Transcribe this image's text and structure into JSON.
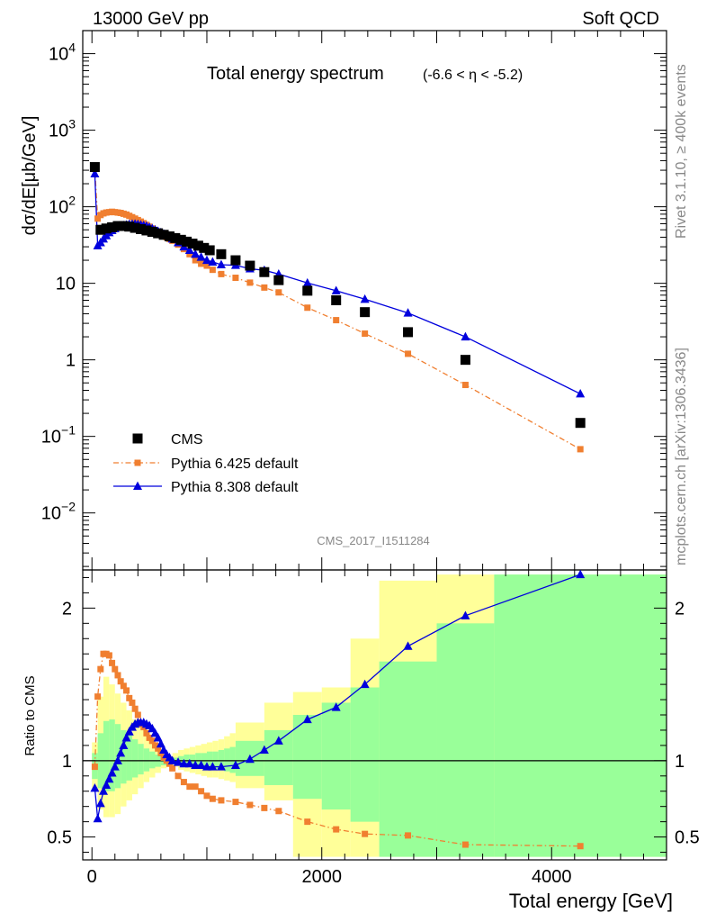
{
  "header": {
    "left": "13000 GeV pp",
    "right": "Soft QCD"
  },
  "side": {
    "rivet": "Rivet 3.1.10, ≥ 400k events",
    "mcplots": "mcplots.cern.ch [arXiv:1306.3436]"
  },
  "analysis_id": "CMS_2017_I1511284",
  "colors": {
    "cms": "#000000",
    "pythia6": "#f07f30",
    "pythia8": "#0000dd",
    "band_yellow": "#ffff99",
    "band_green": "#99ff99"
  },
  "chart_data": [
    {
      "type": "scatter",
      "title": "Total energy spectrum",
      "subtitle": "(-6.6 < η < -5.2)",
      "ylabel": "dσ/dE[μb/GeV]",
      "yscale": "log",
      "ylim": [
        0.0018,
        20000
      ],
      "xlim": [
        -80,
        5000
      ],
      "ytick_labels": [
        {
          "v": 10000,
          "base": "10",
          "exp": "4"
        },
        {
          "v": 1000,
          "base": "10",
          "exp": "3"
        },
        {
          "v": 100,
          "base": "10",
          "exp": "2"
        },
        {
          "v": 10,
          "base": "10",
          "exp": ""
        },
        {
          "v": 1,
          "base": "1",
          "exp": ""
        },
        {
          "v": 0.1,
          "base": "10",
          "exp": "−1"
        },
        {
          "v": 0.01,
          "base": "10",
          "exp": "−2"
        }
      ],
      "legend": {
        "position": "lower-left",
        "entries": [
          "CMS",
          "Pythia 6.425 default",
          "Pythia 8.308 default"
        ]
      },
      "series": [
        {
          "name": "CMS",
          "style": "square",
          "x": [
            25,
            75,
            125,
            175,
            225,
            275,
            325,
            375,
            425,
            475,
            525,
            575,
            625,
            675,
            725,
            775,
            825,
            875,
            925,
            975,
            1025,
            1125,
            1250,
            1375,
            1500,
            1625,
            1875,
            2125,
            2375,
            2750,
            3250,
            4250
          ],
          "y": [
            330,
            50,
            52,
            54,
            56,
            56,
            55,
            53,
            51,
            49,
            47,
            45,
            43,
            41,
            39,
            37,
            35,
            33,
            31,
            29,
            27,
            24,
            20,
            17,
            14,
            11,
            8.0,
            6.0,
            4.2,
            2.3,
            1.0,
            0.15
          ]
        },
        {
          "name": "Pythia 6.425 default",
          "style": "dashdot-square",
          "x": [
            25,
            50,
            75,
            100,
            125,
            150,
            175,
            200,
            225,
            250,
            275,
            300,
            325,
            350,
            375,
            400,
            425,
            450,
            475,
            500,
            525,
            550,
            575,
            600,
            625,
            650,
            675,
            700,
            750,
            800,
            850,
            900,
            950,
            1000,
            1050,
            1125,
            1250,
            1375,
            1500,
            1625,
            1875,
            2125,
            2375,
            2750,
            3250,
            4250
          ],
          "y": [
            315,
            70,
            78,
            82,
            84,
            85,
            86,
            85,
            84,
            83,
            81,
            79,
            76,
            73,
            70,
            67,
            64,
            61,
            58,
            55,
            52,
            49,
            46,
            44,
            42,
            40,
            38,
            36,
            32,
            28,
            24,
            20,
            18,
            17,
            15,
            13.2,
            11.8,
            10.2,
            8.8,
            7.6,
            4.8,
            3.3,
            2.2,
            1.2,
            0.47,
            0.068
          ]
        },
        {
          "name": "Pythia 8.308 default",
          "style": "solid-triangle",
          "x": [
            25,
            50,
            75,
            100,
            125,
            150,
            175,
            200,
            225,
            250,
            275,
            300,
            325,
            350,
            375,
            400,
            425,
            450,
            475,
            500,
            525,
            550,
            575,
            600,
            625,
            650,
            675,
            700,
            750,
            800,
            850,
            900,
            950,
            1000,
            1050,
            1125,
            1250,
            1375,
            1500,
            1625,
            1875,
            2125,
            2375,
            2750,
            3250,
            4250
          ],
          "y": [
            270,
            31,
            34,
            38,
            42,
            46,
            49,
            52,
            54,
            56,
            57,
            58,
            59,
            59.5,
            59.5,
            59,
            58,
            57,
            56,
            54,
            52,
            50,
            48,
            46,
            44,
            42,
            40,
            38,
            34,
            30,
            27,
            24,
            22,
            20,
            19,
            17.5,
            17.2,
            15.5,
            14.8,
            13.2,
            10.1,
            8.0,
            6.2,
            4.1,
            2.0,
            0.36
          ]
        }
      ]
    },
    {
      "type": "scatter",
      "ylabel": "Ratio to CMS",
      "xlabel": "Total energy [GeV]",
      "ylim": [
        0.35,
        2.25
      ],
      "xlim": [
        -80,
        5000
      ],
      "xtick_labels": [
        "0",
        "2000",
        "4000"
      ],
      "xticks": [
        0,
        2000,
        4000
      ],
      "ytick_labels": [
        "0.5",
        "1",
        "2"
      ],
      "yticks": [
        0.5,
        1,
        2
      ],
      "reference_line": 1,
      "bands": {
        "yellow": [
          {
            "x0": 0,
            "x1": 50,
            "lo": 0.82,
            "hi": 1.12
          },
          {
            "x0": 50,
            "x1": 100,
            "lo": 0.68,
            "hi": 1.42
          },
          {
            "x0": 100,
            "x1": 150,
            "lo": 0.63,
            "hi": 1.55
          },
          {
            "x0": 150,
            "x1": 200,
            "lo": 0.63,
            "hi": 1.5
          },
          {
            "x0": 200,
            "x1": 250,
            "lo": 0.65,
            "hi": 1.44
          },
          {
            "x0": 250,
            "x1": 300,
            "lo": 0.7,
            "hi": 1.38
          },
          {
            "x0": 300,
            "x1": 350,
            "lo": 0.74,
            "hi": 1.33
          },
          {
            "x0": 350,
            "x1": 400,
            "lo": 0.78,
            "hi": 1.27
          },
          {
            "x0": 400,
            "x1": 450,
            "lo": 0.82,
            "hi": 1.22
          },
          {
            "x0": 450,
            "x1": 500,
            "lo": 0.86,
            "hi": 1.17
          },
          {
            "x0": 500,
            "x1": 550,
            "lo": 0.89,
            "hi": 1.13
          },
          {
            "x0": 550,
            "x1": 600,
            "lo": 0.92,
            "hi": 1.09
          },
          {
            "x0": 600,
            "x1": 650,
            "lo": 0.95,
            "hi": 1.05
          },
          {
            "x0": 650,
            "x1": 700,
            "lo": 0.97,
            "hi": 1.03
          },
          {
            "x0": 700,
            "x1": 750,
            "lo": 0.96,
            "hi": 1.05
          },
          {
            "x0": 750,
            "x1": 800,
            "lo": 0.94,
            "hi": 1.07
          },
          {
            "x0": 800,
            "x1": 850,
            "lo": 0.93,
            "hi": 1.08
          },
          {
            "x0": 850,
            "x1": 900,
            "lo": 0.92,
            "hi": 1.09
          },
          {
            "x0": 900,
            "x1": 950,
            "lo": 0.91,
            "hi": 1.1
          },
          {
            "x0": 950,
            "x1": 1000,
            "lo": 0.9,
            "hi": 1.11
          },
          {
            "x0": 1000,
            "x1": 1050,
            "lo": 0.89,
            "hi": 1.12
          },
          {
            "x0": 1050,
            "x1": 1100,
            "lo": 0.89,
            "hi": 1.13
          },
          {
            "x0": 1100,
            "x1": 1150,
            "lo": 0.88,
            "hi": 1.14
          },
          {
            "x0": 1150,
            "x1": 1200,
            "lo": 0.87,
            "hi": 1.16
          },
          {
            "x0": 1200,
            "x1": 1250,
            "lo": 0.86,
            "hi": 1.18
          },
          {
            "x0": 1250,
            "x1": 1500,
            "lo": 0.82,
            "hi": 1.25
          },
          {
            "x0": 1500,
            "x1": 1750,
            "lo": 0.74,
            "hi": 1.38
          },
          {
            "x0": 1750,
            "x1": 2000,
            "lo": 0.37,
            "hi": 1.45
          },
          {
            "x0": 2000,
            "x1": 2250,
            "lo": 0.37,
            "hi": 1.48
          },
          {
            "x0": 2250,
            "x1": 2500,
            "lo": 0.37,
            "hi": 1.8
          },
          {
            "x0": 2500,
            "x1": 3000,
            "lo": 0.37,
            "hi": 2.18
          },
          {
            "x0": 3000,
            "x1": 3500,
            "lo": 0.37,
            "hi": 2.22
          },
          {
            "x0": 3500,
            "x1": 5000,
            "lo": 0.37,
            "hi": 2.22
          }
        ],
        "green": [
          {
            "x0": 0,
            "x1": 50,
            "lo": 0.88,
            "hi": 1.05
          },
          {
            "x0": 50,
            "x1": 100,
            "lo": 0.82,
            "hi": 1.18
          },
          {
            "x0": 100,
            "x1": 150,
            "lo": 0.8,
            "hi": 1.26
          },
          {
            "x0": 150,
            "x1": 200,
            "lo": 0.8,
            "hi": 1.27
          },
          {
            "x0": 200,
            "x1": 250,
            "lo": 0.82,
            "hi": 1.24
          },
          {
            "x0": 250,
            "x1": 300,
            "lo": 0.85,
            "hi": 1.2
          },
          {
            "x0": 300,
            "x1": 350,
            "lo": 0.87,
            "hi": 1.17
          },
          {
            "x0": 350,
            "x1": 400,
            "lo": 0.89,
            "hi": 1.14
          },
          {
            "x0": 400,
            "x1": 450,
            "lo": 0.91,
            "hi": 1.11
          },
          {
            "x0": 450,
            "x1": 500,
            "lo": 0.93,
            "hi": 1.08
          },
          {
            "x0": 500,
            "x1": 550,
            "lo": 0.95,
            "hi": 1.06
          },
          {
            "x0": 550,
            "x1": 600,
            "lo": 0.96,
            "hi": 1.04
          },
          {
            "x0": 600,
            "x1": 650,
            "lo": 0.97,
            "hi": 1.03
          },
          {
            "x0": 650,
            "x1": 700,
            "lo": 0.98,
            "hi": 1.02
          },
          {
            "x0": 700,
            "x1": 750,
            "lo": 0.98,
            "hi": 1.02
          },
          {
            "x0": 750,
            "x1": 800,
            "lo": 0.97,
            "hi": 1.03
          },
          {
            "x0": 800,
            "x1": 850,
            "lo": 0.97,
            "hi": 1.04
          },
          {
            "x0": 850,
            "x1": 900,
            "lo": 0.96,
            "hi": 1.04
          },
          {
            "x0": 900,
            "x1": 950,
            "lo": 0.96,
            "hi": 1.05
          },
          {
            "x0": 950,
            "x1": 1000,
            "lo": 0.95,
            "hi": 1.05
          },
          {
            "x0": 1000,
            "x1": 1050,
            "lo": 0.95,
            "hi": 1.06
          },
          {
            "x0": 1050,
            "x1": 1100,
            "lo": 0.94,
            "hi": 1.06
          },
          {
            "x0": 1100,
            "x1": 1150,
            "lo": 0.94,
            "hi": 1.07
          },
          {
            "x0": 1150,
            "x1": 1200,
            "lo": 0.93,
            "hi": 1.08
          },
          {
            "x0": 1200,
            "x1": 1250,
            "lo": 0.92,
            "hi": 1.09
          },
          {
            "x0": 1250,
            "x1": 1500,
            "lo": 0.9,
            "hi": 1.13
          },
          {
            "x0": 1500,
            "x1": 1750,
            "lo": 0.84,
            "hi": 1.2
          },
          {
            "x0": 1750,
            "x1": 2000,
            "lo": 0.75,
            "hi": 1.3
          },
          {
            "x0": 2000,
            "x1": 2250,
            "lo": 0.68,
            "hi": 1.38
          },
          {
            "x0": 2250,
            "x1": 2500,
            "lo": 0.6,
            "hi": 1.48
          },
          {
            "x0": 2500,
            "x1": 3000,
            "lo": 0.37,
            "hi": 1.65
          },
          {
            "x0": 3000,
            "x1": 3500,
            "lo": 0.37,
            "hi": 1.9
          },
          {
            "x0": 3500,
            "x1": 5000,
            "lo": 0.37,
            "hi": 2.22
          }
        ]
      },
      "series": [
        {
          "name": "Pythia 6.425 default",
          "style": "dashdot-square",
          "x": [
            25,
            50,
            75,
            100,
            125,
            150,
            175,
            200,
            225,
            250,
            275,
            300,
            325,
            350,
            375,
            400,
            425,
            450,
            475,
            500,
            525,
            550,
            575,
            600,
            625,
            650,
            675,
            700,
            750,
            800,
            850,
            900,
            950,
            1000,
            1050,
            1125,
            1250,
            1375,
            1500,
            1625,
            1875,
            2125,
            2375,
            2750,
            3250,
            4250
          ],
          "y": [
            0.96,
            1.42,
            1.6,
            1.7,
            1.7,
            1.69,
            1.64,
            1.6,
            1.56,
            1.52,
            1.49,
            1.46,
            1.41,
            1.38,
            1.34,
            1.3,
            1.24,
            1.22,
            1.18,
            1.15,
            1.13,
            1.1,
            1.08,
            1.05,
            1.02,
            1.0,
            0.98,
            0.95,
            0.9,
            0.86,
            0.83,
            0.83,
            0.8,
            0.77,
            0.75,
            0.74,
            0.73,
            0.71,
            0.69,
            0.67,
            0.6,
            0.55,
            0.52,
            0.51,
            0.45,
            0.44
          ]
        },
        {
          "name": "Pythia 8.308 default",
          "style": "solid-triangle",
          "x": [
            25,
            50,
            75,
            100,
            125,
            150,
            175,
            200,
            225,
            250,
            275,
            300,
            325,
            350,
            375,
            400,
            425,
            450,
            475,
            500,
            525,
            550,
            575,
            600,
            625,
            650,
            675,
            700,
            750,
            800,
            850,
            900,
            950,
            1000,
            1050,
            1125,
            1250,
            1375,
            1500,
            1625,
            1875,
            2125,
            2375,
            2750,
            3250,
            4250
          ],
          "y": [
            0.82,
            0.62,
            0.72,
            0.8,
            0.84,
            0.88,
            0.92,
            0.96,
            1.0,
            1.05,
            1.1,
            1.15,
            1.19,
            1.22,
            1.24,
            1.25,
            1.25,
            1.25,
            1.24,
            1.23,
            1.21,
            1.18,
            1.15,
            1.11,
            1.07,
            1.04,
            1.02,
            1.0,
            0.99,
            0.98,
            0.98,
            0.97,
            0.97,
            0.96,
            0.96,
            0.96,
            0.97,
            1.01,
            1.07,
            1.13,
            1.27,
            1.35,
            1.5,
            1.75,
            1.95,
            2.22
          ]
        }
      ]
    }
  ]
}
